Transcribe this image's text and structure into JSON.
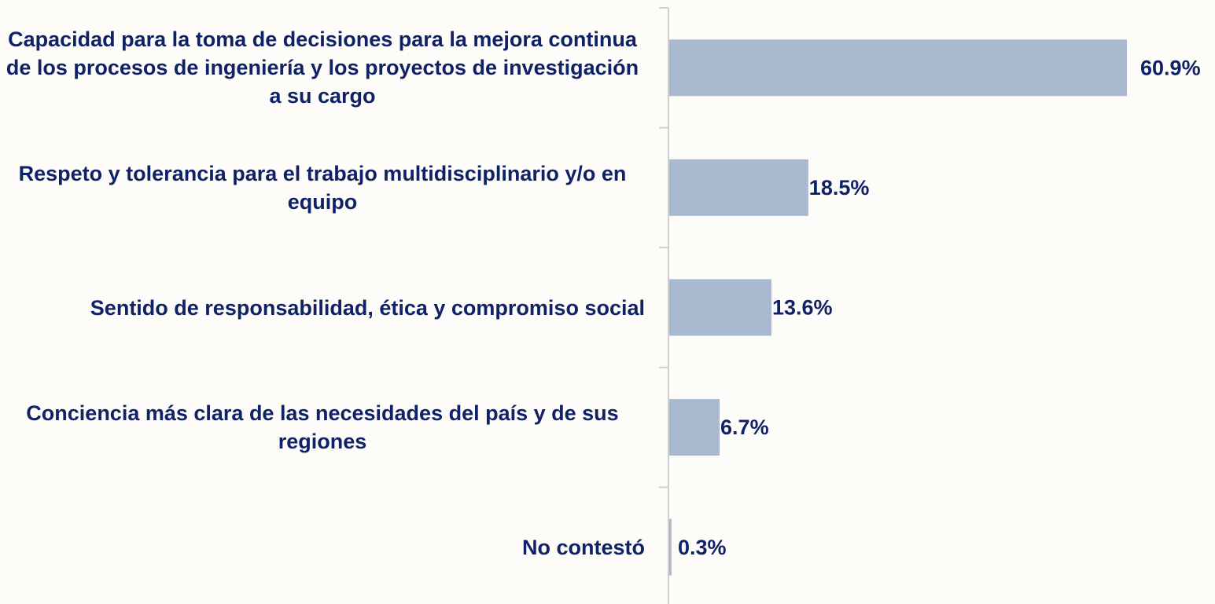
{
  "chart_data": {
    "type": "bar",
    "orientation": "horizontal",
    "categories": [
      "Capacidad para la toma de decisiones para la mejora continua de los procesos de ingeniería y los proyectos de investigación a su cargo",
      "Respeto y tolerancia para el trabajo multidisciplinario y/o en equipo",
      "Sentido de responsabilidad, ética y compromiso social",
      "Conciencia más clara de las necesidades del país y de sus regiones",
      "No contestó"
    ],
    "values": [
      60.9,
      18.5,
      13.6,
      6.7,
      0.3
    ],
    "value_labels": [
      "60.9%",
      "18.5%",
      "13.6%",
      "6.7%",
      "0.3%"
    ],
    "color": "#a9b9cf"
  }
}
